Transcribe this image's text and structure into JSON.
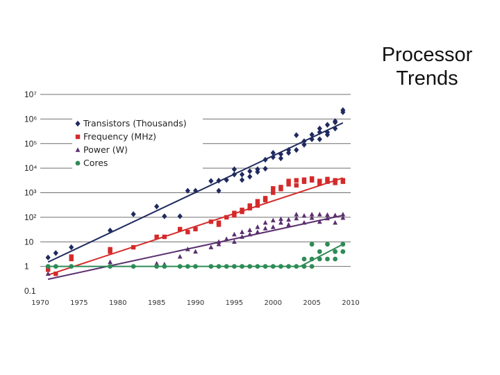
{
  "slide": {
    "title_line1": "Processor",
    "title_line2": "Trends"
  },
  "chart_data": {
    "type": "scatter",
    "y_scale": "log",
    "ylim": [
      0.1,
      10000000
    ],
    "xlim": [
      1970,
      2010
    ],
    "x_ticks": [
      "1970",
      "1975",
      "1980",
      "1985",
      "1990",
      "1995",
      "2000",
      "2005",
      "2010"
    ],
    "y_ticks": [
      {
        "value": 0.1,
        "label": "0.1"
      },
      {
        "value": 1,
        "label": "1"
      },
      {
        "value": 10,
        "label": "10"
      },
      {
        "value": 100,
        "label": "10²"
      },
      {
        "value": 1000,
        "label": "10³"
      },
      {
        "value": 10000,
        "label": "10⁴"
      },
      {
        "value": 100000,
        "label": "10⁵"
      },
      {
        "value": 1000000,
        "label": "10⁶"
      },
      {
        "value": 10000000,
        "label": "10⁷"
      }
    ],
    "grid": "horizontal",
    "legend_position": "top-left",
    "series": [
      {
        "name": "Transistors (Thousands)",
        "marker": "diamond",
        "color": "#1f2a5e",
        "trend": [
          [
            1971,
            1.5
          ],
          [
            2009,
            700000
          ]
        ],
        "points": [
          [
            1971,
            2.3
          ],
          [
            1972,
            3.5
          ],
          [
            1974,
            6
          ],
          [
            1979,
            29
          ],
          [
            1982,
            134
          ],
          [
            1985,
            275
          ],
          [
            1986,
            110
          ],
          [
            1988,
            110
          ],
          [
            1989,
            1200
          ],
          [
            1990,
            1200
          ],
          [
            1992,
            3000
          ],
          [
            1993,
            3100
          ],
          [
            1993,
            1200
          ],
          [
            1994,
            3300
          ],
          [
            1995,
            5500
          ],
          [
            1995,
            9000
          ],
          [
            1996,
            3300
          ],
          [
            1996,
            5500
          ],
          [
            1997,
            7500
          ],
          [
            1997,
            4500
          ],
          [
            1998,
            9000
          ],
          [
            1998,
            7000
          ],
          [
            1999,
            9500
          ],
          [
            1999,
            22000
          ],
          [
            2000,
            28000
          ],
          [
            2000,
            42000
          ],
          [
            2001,
            37000
          ],
          [
            2001,
            25000
          ],
          [
            2002,
            55000
          ],
          [
            2002,
            42000
          ],
          [
            2003,
            55000
          ],
          [
            2003,
            220000
          ],
          [
            2004,
            125000
          ],
          [
            2004,
            90000
          ],
          [
            2005,
            230000
          ],
          [
            2005,
            150000
          ],
          [
            2006,
            290000
          ],
          [
            2006,
            150000
          ],
          [
            2006,
            410000
          ],
          [
            2007,
            580000
          ],
          [
            2007,
            290000
          ],
          [
            2007,
            230000
          ],
          [
            2008,
            730000
          ],
          [
            2008,
            410000
          ],
          [
            2008,
            820000
          ],
          [
            2009,
            1900000
          ],
          [
            2009,
            2300000
          ]
        ]
      },
      {
        "name": "Frequency (MHz)",
        "marker": "square",
        "color": "#d42a2a",
        "trend": [
          [
            1971,
            0.45
          ],
          [
            2009,
            4000
          ]
        ],
        "points": [
          [
            1971,
            0.74
          ],
          [
            1972,
            0.5
          ],
          [
            1974,
            2
          ],
          [
            1974,
            2.5
          ],
          [
            1979,
            5
          ],
          [
            1979,
            4
          ],
          [
            1982,
            6
          ],
          [
            1985,
            16
          ],
          [
            1986,
            16
          ],
          [
            1988,
            33
          ],
          [
            1989,
            25
          ],
          [
            1990,
            33
          ],
          [
            1992,
            66
          ],
          [
            1993,
            60
          ],
          [
            1993,
            50
          ],
          [
            1994,
            100
          ],
          [
            1995,
            120
          ],
          [
            1995,
            150
          ],
          [
            1996,
            200
          ],
          [
            1996,
            166
          ],
          [
            1997,
            233
          ],
          [
            1997,
            300
          ],
          [
            1998,
            450
          ],
          [
            1998,
            300
          ],
          [
            1999,
            600
          ],
          [
            1999,
            500
          ],
          [
            2000,
            1000
          ],
          [
            2000,
            1500
          ],
          [
            2001,
            1700
          ],
          [
            2001,
            1400
          ],
          [
            2002,
            2200
          ],
          [
            2002,
            3000
          ],
          [
            2003,
            3200
          ],
          [
            2003,
            2000
          ],
          [
            2004,
            3400
          ],
          [
            2004,
            2800
          ],
          [
            2005,
            3800
          ],
          [
            2005,
            3200
          ],
          [
            2006,
            3000
          ],
          [
            2006,
            2400
          ],
          [
            2007,
            3600
          ],
          [
            2007,
            2800
          ],
          [
            2008,
            3200
          ],
          [
            2008,
            2500
          ],
          [
            2009,
            3200
          ],
          [
            2009,
            2800
          ]
        ]
      },
      {
        "name": "Power (W)",
        "marker": "triangle",
        "color": "#5b2f6e",
        "trend": [
          [
            1971,
            0.3
          ],
          [
            2009,
            120
          ]
        ],
        "points": [
          [
            1971,
            0.5
          ],
          [
            1979,
            1.5
          ],
          [
            1985,
            1.3
          ],
          [
            1986,
            1.2
          ],
          [
            1988,
            2.5
          ],
          [
            1989,
            5
          ],
          [
            1990,
            4
          ],
          [
            1992,
            6
          ],
          [
            1993,
            10
          ],
          [
            1993,
            8
          ],
          [
            1994,
            13
          ],
          [
            1995,
            20
          ],
          [
            1995,
            10
          ],
          [
            1996,
            16
          ],
          [
            1996,
            25
          ],
          [
            1997,
            30
          ],
          [
            1997,
            20
          ],
          [
            1998,
            40
          ],
          [
            1998,
            25
          ],
          [
            1999,
            35
          ],
          [
            1999,
            60
          ],
          [
            2000,
            75
          ],
          [
            2000,
            40
          ],
          [
            2001,
            85
          ],
          [
            2001,
            60
          ],
          [
            2002,
            80
          ],
          [
            2002,
            50
          ],
          [
            2003,
            130
          ],
          [
            2003,
            90
          ],
          [
            2004,
            115
          ],
          [
            2004,
            60
          ],
          [
            2005,
            130
          ],
          [
            2005,
            95
          ],
          [
            2006,
            130
          ],
          [
            2006,
            65
          ],
          [
            2007,
            125
          ],
          [
            2007,
            90
          ],
          [
            2008,
            120
          ],
          [
            2008,
            60
          ],
          [
            2009,
            130
          ],
          [
            2009,
            95
          ]
        ]
      },
      {
        "name": "Cores",
        "marker": "circle",
        "color": "#2e8b57",
        "trend": [
          [
            1971,
            1
          ],
          [
            2003.5,
            1
          ],
          [
            2009,
            8
          ]
        ],
        "points": [
          [
            1971,
            1
          ],
          [
            1972,
            1
          ],
          [
            1974,
            1
          ],
          [
            1979,
            1
          ],
          [
            1982,
            1
          ],
          [
            1985,
            1
          ],
          [
            1986,
            1
          ],
          [
            1988,
            1
          ],
          [
            1989,
            1
          ],
          [
            1990,
            1
          ],
          [
            1992,
            1
          ],
          [
            1993,
            1
          ],
          [
            1994,
            1
          ],
          [
            1995,
            1
          ],
          [
            1996,
            1
          ],
          [
            1997,
            1
          ],
          [
            1998,
            1
          ],
          [
            1999,
            1
          ],
          [
            2000,
            1
          ],
          [
            2001,
            1
          ],
          [
            2002,
            1
          ],
          [
            2003,
            1
          ],
          [
            2004,
            2
          ],
          [
            2004,
            1
          ],
          [
            2005,
            2
          ],
          [
            2005,
            8
          ],
          [
            2005,
            1
          ],
          [
            2006,
            2
          ],
          [
            2006,
            4
          ],
          [
            2007,
            8
          ],
          [
            2007,
            2
          ],
          [
            2008,
            4
          ],
          [
            2008,
            2
          ],
          [
            2009,
            8
          ],
          [
            2009,
            4
          ]
        ]
      }
    ]
  }
}
